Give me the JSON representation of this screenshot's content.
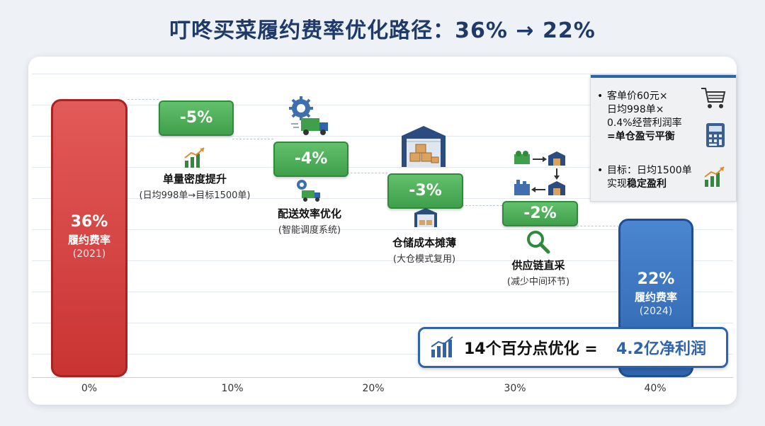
{
  "title": "叮咚买菜履约费率优化路径：36% → 22%",
  "colors": {
    "start_bar": "#c93432",
    "end_bar": "#2e63ad",
    "step": "#4caf50",
    "accent": "#2e63ad"
  },
  "chart_data": {
    "type": "waterfall",
    "x_ticks": [
      "0%",
      "10%",
      "20%",
      "30%",
      "40%"
    ],
    "start": {
      "value": 36,
      "value_label": "36%",
      "name": "履约费率",
      "year": "(2021)"
    },
    "steps": [
      {
        "value": -5,
        "value_label": "-5%",
        "name": "单量密度提升",
        "note": "(日均998单→目标1500单)",
        "icon": "growth-chart-icon"
      },
      {
        "value": -4,
        "value_label": "-4%",
        "name": "配送效率优化",
        "note": "(智能调度系统)",
        "icon": "delivery-truck-gear-icon"
      },
      {
        "value": -3,
        "value_label": "-3%",
        "name": "仓储成本摊薄",
        "note": "(大仓模式复用)",
        "icon": "warehouse-icon"
      },
      {
        "value": -2,
        "value_label": "-2%",
        "name": "供应链直采",
        "note": "(减少中间环节)",
        "icon": "supply-chain-icon"
      }
    ],
    "end": {
      "value": 22,
      "value_label": "22%",
      "name": "履约费率",
      "year": "(2024)"
    }
  },
  "info": {
    "bullet1_lines": [
      "客单价60元×",
      "日均998单×",
      "0.4%经营利润率"
    ],
    "bullet1_bold": "=单仓盈亏平衡",
    "bullet2_line1": "目标：日均1500单",
    "bullet2_prefix": "实现",
    "bullet2_bold": "稳定盈利"
  },
  "summary": {
    "left": "14个百分点优化  =",
    "right": "4.2亿净利润"
  }
}
